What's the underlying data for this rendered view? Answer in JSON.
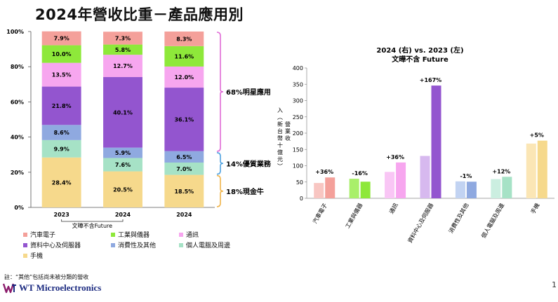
{
  "page": {
    "title": "2024年營收比重－產品應用別",
    "footnote": "註：“其他”包括尚未被分類的營收",
    "company": "WT Microelectronics",
    "page_number": "1"
  },
  "legend": [
    {
      "name": "汽車電子",
      "color": "#f4a09a"
    },
    {
      "name": "工業與儀器",
      "color": "#8ee83a"
    },
    {
      "name": "通訊",
      "color": "#f7a6ef"
    },
    {
      "name": "資料中心及伺服器",
      "color": "#9355cf"
    },
    {
      "name": "消費性及其他",
      "color": "#8fa9e0"
    },
    {
      "name": "個人電腦及周邊",
      "color": "#a6e2c6"
    },
    {
      "name": "手機",
      "color": "#f6d98c"
    }
  ],
  "chart_data": [
    {
      "type": "bar",
      "stacked": true,
      "categories": [
        "2023",
        "2024",
        "2024"
      ],
      "category_note": "文曄不含Future",
      "ylim": [
        0,
        100
      ],
      "yticks": [
        "0%",
        "20%",
        "40%",
        "60%",
        "80%",
        "100%"
      ],
      "series": [
        {
          "name": "手機",
          "color": "#f6d98c",
          "values": [
            28.4,
            20.5,
            18.5
          ],
          "labels": [
            "28.4%",
            "20.5%",
            "18.5%"
          ]
        },
        {
          "name": "個人電腦及周邊",
          "color": "#a6e2c6",
          "values": [
            9.9,
            7.6,
            7.0
          ],
          "labels": [
            "9.9%",
            "7.6%",
            "7.0%"
          ]
        },
        {
          "name": "消費性及其他",
          "color": "#8fa9e0",
          "values": [
            8.6,
            5.9,
            6.5
          ],
          "labels": [
            "8.6%",
            "5.9%",
            "6.5%"
          ]
        },
        {
          "name": "資料中心及伺服器",
          "color": "#9355cf",
          "values": [
            21.8,
            40.1,
            36.1
          ],
          "labels": [
            "21.8%",
            "40.1%",
            "36.1%"
          ]
        },
        {
          "name": "通訊",
          "color": "#f7a6ef",
          "values": [
            13.5,
            12.7,
            12.0
          ],
          "labels": [
            "13.5%",
            "12.7%",
            "12.0%"
          ]
        },
        {
          "name": "工業與儀器",
          "color": "#8ee83a",
          "values": [
            10.0,
            5.8,
            11.6
          ],
          "labels": [
            "10.0%",
            "5.8%",
            "11.6%"
          ]
        },
        {
          "name": "汽車電子",
          "color": "#f4a09a",
          "values": [
            7.9,
            7.3,
            8.3
          ],
          "labels": [
            "7.9%",
            "7.3%",
            "8.3%"
          ]
        }
      ],
      "groups": [
        {
          "label": "68%明星應用",
          "from": 31.5,
          "to": 100,
          "color": "#e06bd6"
        },
        {
          "label": "14%優質業務",
          "from": 18.5,
          "to": 31.5,
          "color": "#4fa2e0"
        },
        {
          "label": "18%現金牛",
          "from": 0,
          "to": 18.5,
          "color": "#f0b44a"
        }
      ]
    },
    {
      "type": "bar",
      "title": "2024 (右) vs. 2023 (左)",
      "subtitle": "文曄不含 Future",
      "ylabel": "營業收入（新台幣十億元）",
      "ylabel_cols": [
        "營",
        "業",
        "收",
        "入",
        "︵",
        "新",
        "台",
        "幣",
        "十",
        "億",
        "元",
        "︶"
      ],
      "ylim": [
        0,
        400
      ],
      "yticks": [
        "0",
        "50",
        "100",
        "150",
        "200",
        "250",
        "300",
        "350",
        "400"
      ],
      "categories": [
        "汽車電子",
        "工業與儀器",
        "通訊",
        "資料中心及伺服器",
        "消費性及其他",
        "個人電腦及周邊",
        "手機"
      ],
      "series": [
        {
          "name": "2023",
          "values": [
            47,
            60,
            81,
            130,
            52,
            59,
            168
          ]
        },
        {
          "name": "2024",
          "values": [
            64,
            51,
            110,
            346,
            51,
            66,
            177
          ]
        }
      ],
      "colors_2023": [
        "#f8c6c2",
        "#a9ef6a",
        "#f9c6f5",
        "#d7b9ef",
        "#c2d3f2",
        "#cbeee0",
        "#fbe6b5"
      ],
      "colors_2024": [
        "#f4a09a",
        "#8ee83a",
        "#f7a6ef",
        "#9355cf",
        "#8fa9e0",
        "#a6e2c6",
        "#f6d98c"
      ],
      "change_labels": [
        "+36%",
        "-16%",
        "+36%",
        "+167%",
        "-1%",
        "+12%",
        "+5%"
      ]
    }
  ]
}
